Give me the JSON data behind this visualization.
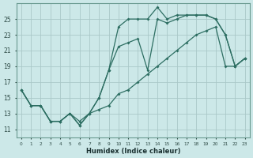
{
  "xlabel": "Humidex (Indice chaleur)",
  "background_color": "#cce8e8",
  "grid_color": "#aac8c8",
  "line_color": "#2d6e62",
  "x_ticks": [
    0,
    1,
    2,
    3,
    4,
    5,
    6,
    7,
    8,
    9,
    10,
    11,
    12,
    13,
    14,
    15,
    16,
    17,
    18,
    19,
    20,
    21,
    22,
    23
  ],
  "y_ticks": [
    11,
    13,
    15,
    17,
    19,
    21,
    23,
    25
  ],
  "xlim": [
    -0.5,
    23.5
  ],
  "ylim": [
    10.0,
    27.0
  ],
  "line1_x": [
    0,
    1,
    2,
    3,
    4,
    5,
    6,
    7,
    8,
    9,
    10,
    11,
    12,
    13,
    14,
    15,
    16,
    17,
    18,
    19,
    20,
    21,
    22,
    23
  ],
  "line1_y": [
    16,
    14,
    14,
    12,
    12,
    13,
    12,
    13,
    15,
    18.5,
    24,
    25,
    25,
    25,
    26.5,
    25,
    25.5,
    25.5,
    25.5,
    25.5,
    25,
    23,
    19,
    20
  ],
  "line2_x": [
    0,
    1,
    2,
    3,
    4,
    5,
    6,
    7,
    8,
    9,
    10,
    11,
    12,
    13,
    14,
    15,
    16,
    17,
    18,
    19,
    20,
    21,
    22,
    23
  ],
  "line2_y": [
    16,
    14,
    14,
    12,
    12,
    13,
    11.5,
    13,
    15,
    18.5,
    21.5,
    22,
    22.5,
    18.5,
    25,
    24.5,
    25,
    25.5,
    25.5,
    25.5,
    25,
    23,
    19,
    20
  ],
  "line3_x": [
    0,
    1,
    2,
    3,
    4,
    5,
    6,
    7,
    8,
    9,
    10,
    11,
    12,
    13,
    14,
    15,
    16,
    17,
    18,
    19,
    20,
    21,
    22,
    23
  ],
  "line3_y": [
    16,
    14,
    14,
    12,
    12,
    13,
    11.5,
    13,
    13.5,
    14,
    15.5,
    16,
    17,
    18,
    19,
    20,
    21,
    22,
    23,
    23.5,
    24,
    19,
    19,
    20
  ]
}
